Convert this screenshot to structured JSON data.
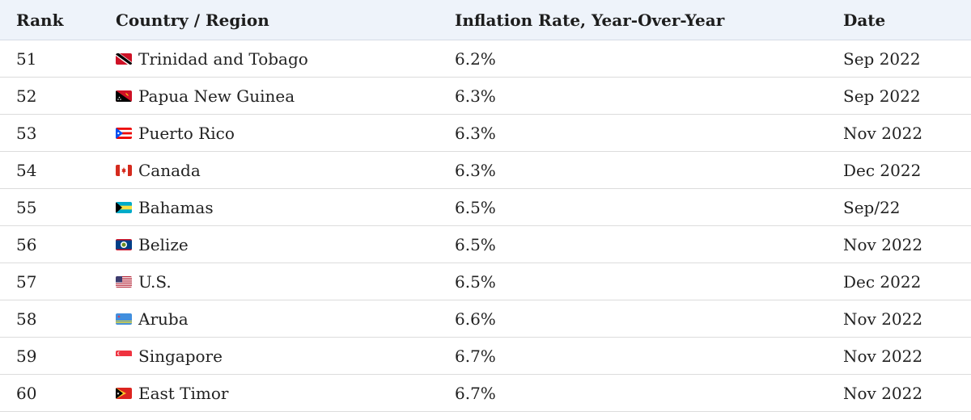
{
  "table": {
    "headers": {
      "rank": "Rank",
      "country": "Country / Region",
      "rate": "Inflation Rate, Year-Over-Year",
      "date": "Date"
    },
    "rows": [
      {
        "rank": "51",
        "country": "Trinidad and Tobago",
        "flag": "trinidad-and-tobago-flag-icon",
        "rate": "6.2%",
        "date": "Sep 2022"
      },
      {
        "rank": "52",
        "country": "Papua New Guinea",
        "flag": "papua-new-guinea-flag-icon",
        "rate": "6.3%",
        "date": "Sep 2022"
      },
      {
        "rank": "53",
        "country": "Puerto Rico",
        "flag": "puerto-rico-flag-icon",
        "rate": "6.3%",
        "date": "Nov 2022"
      },
      {
        "rank": "54",
        "country": "Canada",
        "flag": "canada-flag-icon",
        "rate": "6.3%",
        "date": "Dec 2022"
      },
      {
        "rank": "55",
        "country": "Bahamas",
        "flag": "bahamas-flag-icon",
        "rate": "6.5%",
        "date": "Sep/22"
      },
      {
        "rank": "56",
        "country": "Belize",
        "flag": "belize-flag-icon",
        "rate": "6.5%",
        "date": "Nov 2022"
      },
      {
        "rank": "57",
        "country": "U.S.",
        "flag": "us-flag-icon",
        "rate": "6.5%",
        "date": "Dec 2022"
      },
      {
        "rank": "58",
        "country": "Aruba",
        "flag": "aruba-flag-icon",
        "rate": "6.6%",
        "date": "Nov 2022"
      },
      {
        "rank": "59",
        "country": "Singapore",
        "flag": "singapore-flag-icon",
        "rate": "6.7%",
        "date": "Nov 2022"
      },
      {
        "rank": "60",
        "country": "East Timor",
        "flag": "east-timor-flag-icon",
        "rate": "6.7%",
        "date": "Nov 2022"
      }
    ]
  },
  "colors": {
    "header_bg": "#eef3fa",
    "row_border": "#dcdcdc"
  }
}
